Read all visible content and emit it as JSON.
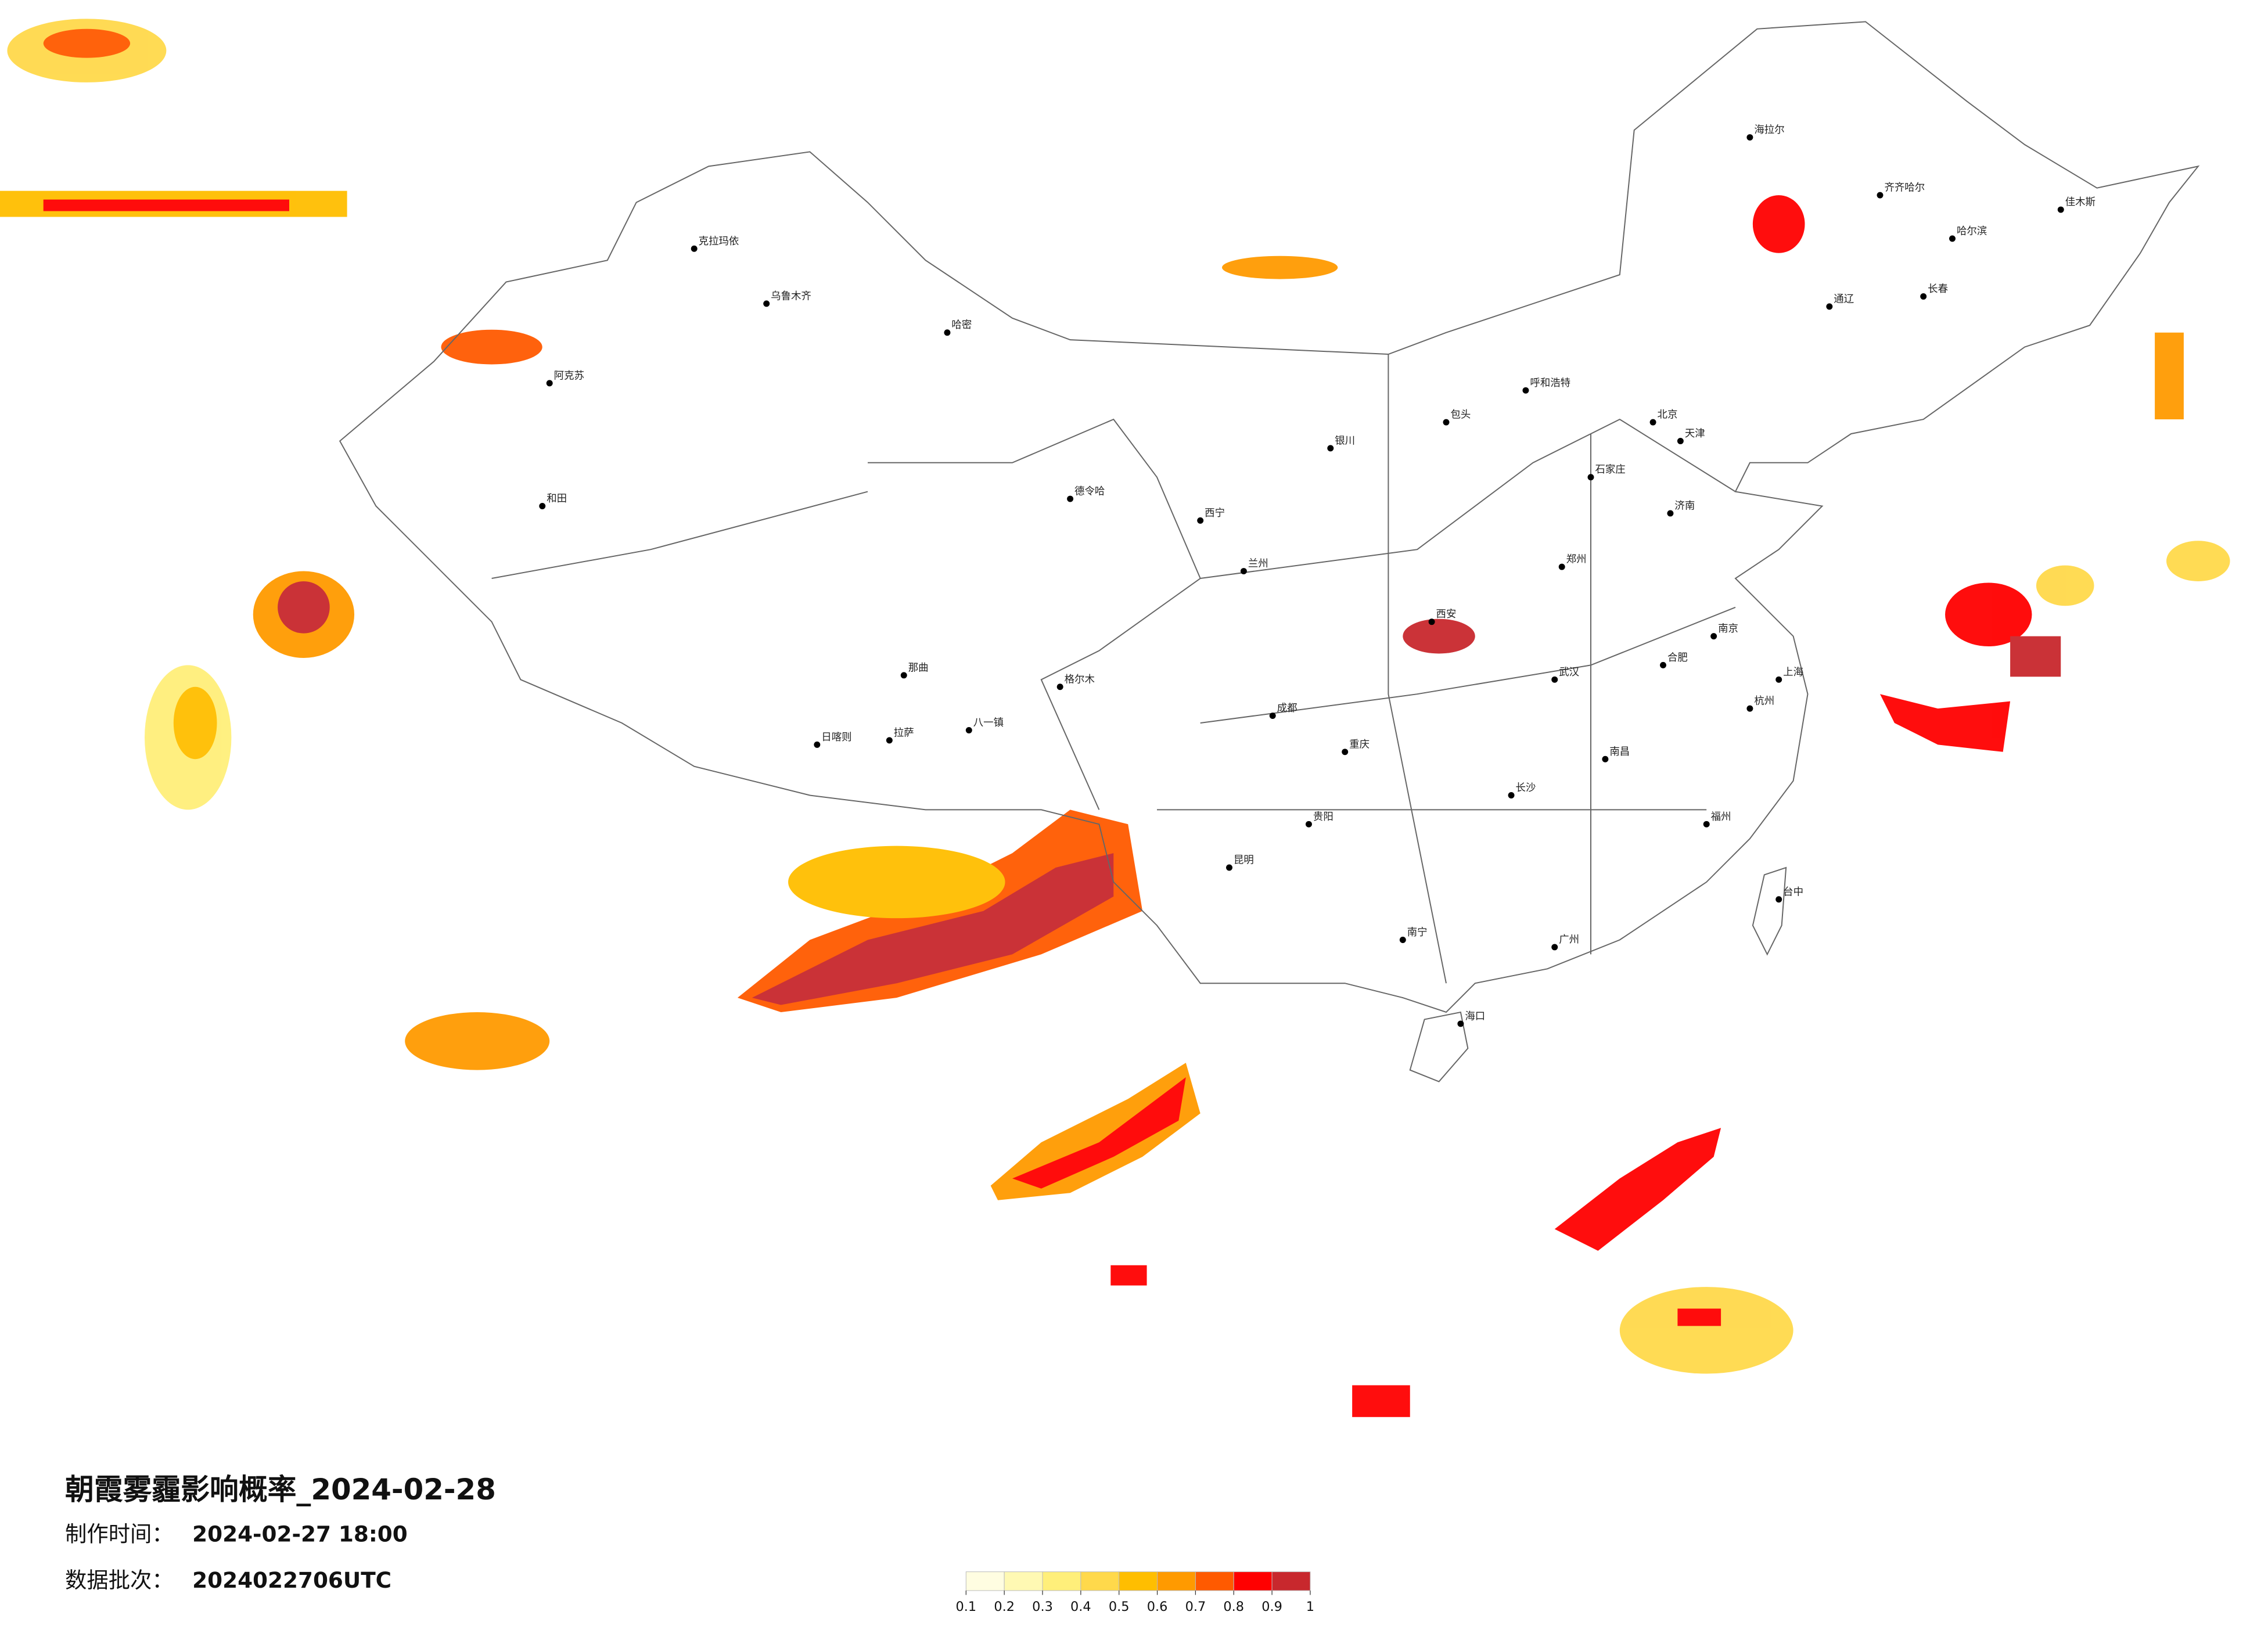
{
  "header": {
    "title": "朝霞雾霾影响概率_2024-02-28",
    "made_label": "制作时间：",
    "made_value": "2024-02-27 18:00",
    "batch_label": "数据批次：",
    "batch_value": "2024022706UTC"
  },
  "legend": {
    "ticks": [
      0.1,
      0.2,
      0.3,
      0.4,
      0.5,
      0.6,
      0.7,
      0.8,
      0.9,
      1
    ],
    "colors": [
      "#fffde1",
      "#fff9b3",
      "#ffef7a",
      "#ffd94b",
      "#ffbe00",
      "#ff9a00",
      "#ff5a00",
      "#ff0000",
      "#c8282d"
    ]
  },
  "cities": [
    "克拉玛依",
    "乌鲁木齐",
    "哈密",
    "和田",
    "阿克苏",
    "日喀则",
    "拉萨",
    "那曲",
    "八一镇",
    "格尔木",
    "德令哈",
    "西宁",
    "兰州",
    "银川",
    "包头",
    "呼和浩特",
    "北京",
    "天津",
    "石家庄",
    "济南",
    "郑州",
    "西安",
    "成都",
    "重庆",
    "昆明",
    "贵阳",
    "南宁",
    "长沙",
    "武汉",
    "南昌",
    "合肥",
    "南京",
    "上海",
    "杭州",
    "福州",
    "广州",
    "海口",
    "台中",
    "通辽",
    "海拉尔",
    "齐齐哈尔",
    "哈尔滨",
    "长春",
    "佳木斯"
  ]
}
